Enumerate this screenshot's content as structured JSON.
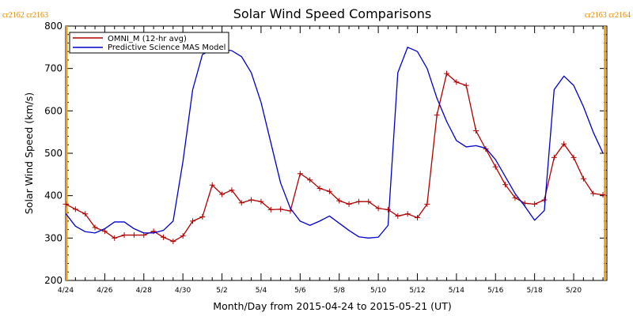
{
  "chart_data": {
    "type": "line",
    "title": "Solar Wind Speed Comparisons",
    "xlabel": "Month/Day from 2015-04-24 to 2015-05-21 (UT)",
    "ylabel": "Solar Wind Speed (km/s)",
    "ylim": [
      200,
      800
    ],
    "y_ticks": [
      200,
      300,
      400,
      500,
      600,
      700,
      800
    ],
    "x_tick_labels": [
      "4/24",
      "4/26",
      "4/28",
      "4/30",
      "5/2",
      "5/4",
      "5/6",
      "5/8",
      "5/10",
      "5/12",
      "5/14",
      "5/16",
      "5/18",
      "5/20"
    ],
    "x_range_days": [
      0,
      27.7
    ],
    "carrington_markers": {
      "left_label": "cr2162 cr2163",
      "right_label": "cr2163 cr2164",
      "left_day": 0.05,
      "right_day": 27.6,
      "color": "#f59a00"
    },
    "legend_position": "top-left",
    "series": [
      {
        "name": "OMNI_M (12-hr avg)",
        "color": "#b00000",
        "markers": "plus",
        "x": [
          0.0,
          0.5,
          1.0,
          1.5,
          2.0,
          2.5,
          3.0,
          3.5,
          4.0,
          4.5,
          5.0,
          5.5,
          6.0,
          6.5,
          7.0,
          7.5,
          8.0,
          8.5,
          9.0,
          9.5,
          10.0,
          10.5,
          11.0,
          11.5,
          12.0,
          12.5,
          13.0,
          13.5,
          14.0,
          14.5,
          15.0,
          15.5,
          16.0,
          16.5,
          17.0,
          17.5,
          18.0,
          18.5,
          19.0,
          19.5,
          20.0,
          20.5,
          21.0,
          21.5,
          22.0,
          22.5,
          23.0,
          23.5,
          24.0,
          24.5,
          25.0,
          25.5,
          26.0,
          26.5,
          27.0,
          27.5
        ],
        "values": [
          380,
          368,
          357,
          325,
          316,
          300,
          307,
          307,
          307,
          316,
          302,
          292,
          305,
          340,
          350,
          425,
          403,
          413,
          383,
          390,
          386,
          367,
          368,
          364,
          452,
          437,
          417,
          410,
          388,
          380,
          386,
          386,
          370,
          367,
          352,
          357,
          348,
          380,
          590,
          688,
          668,
          660,
          553,
          510,
          468,
          426,
          395,
          382,
          380,
          390,
          490,
          522,
          490,
          440,
          405,
          402
        ]
      },
      {
        "name": "Predictive Science MAS Model",
        "color": "#0000cc",
        "markers": "none",
        "x": [
          0.0,
          0.5,
          1.0,
          1.5,
          2.0,
          2.5,
          3.0,
          3.5,
          4.0,
          4.5,
          5.0,
          5.5,
          6.0,
          6.5,
          7.0,
          7.5,
          8.0,
          8.5,
          9.0,
          9.5,
          10.0,
          10.5,
          11.0,
          11.5,
          12.0,
          12.5,
          13.0,
          13.5,
          14.0,
          14.5,
          15.0,
          15.5,
          16.0,
          16.5,
          17.0,
          17.5,
          18.0,
          18.5,
          19.0,
          19.5,
          20.0,
          20.5,
          21.0,
          21.5,
          22.0,
          22.5,
          23.0,
          23.5,
          24.0,
          24.5,
          25.0,
          25.5,
          26.0,
          26.5,
          27.0,
          27.5
        ],
        "values": [
          358,
          328,
          315,
          312,
          322,
          338,
          338,
          322,
          312,
          312,
          318,
          340,
          480,
          650,
          733,
          745,
          745,
          742,
          728,
          690,
          620,
          525,
          430,
          370,
          340,
          330,
          340,
          352,
          335,
          318,
          303,
          300,
          302,
          330,
          690,
          750,
          740,
          700,
          630,
          575,
          530,
          515,
          518,
          512,
          485,
          445,
          405,
          375,
          342,
          365,
          650,
          682,
          660,
          610,
          550,
          500
        ]
      }
    ]
  }
}
